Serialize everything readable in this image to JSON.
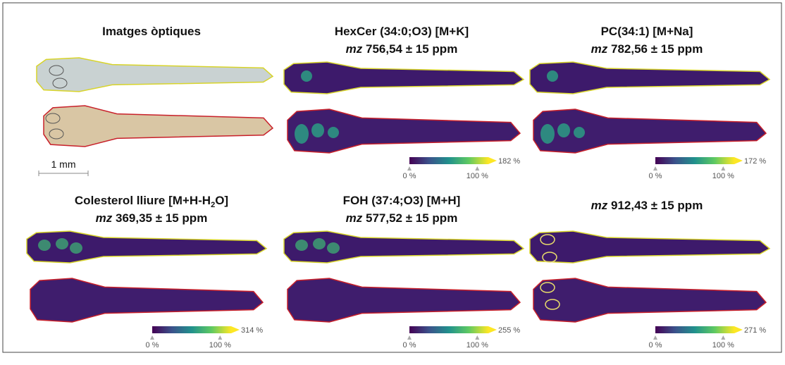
{
  "figure": {
    "optical": {
      "title": "Imatges òptiques",
      "scale_bar": "1 mm"
    },
    "panels": [
      {
        "title": [
          "HexCer (34:0;O3) [M+K]"
        ],
        "mz": [
          "mz",
          " 756,54 ± 15 ppm"
        ],
        "colorbar": {
          "min": "0 %",
          "mid": "100 %",
          "max": "182 %"
        }
      },
      {
        "title": [
          "PC(34:1) [M+Na]"
        ],
        "mz": [
          "mz",
          " 782,56 ± 15 ppm"
        ],
        "colorbar": {
          "min": "0 %",
          "mid": "100 %",
          "max": "172 %"
        }
      },
      {
        "title": [
          "Colesterol lliure [M+H-H",
          "2",
          "O]"
        ],
        "mz": [
          "mz",
          " 369,35 ± 15 ppm"
        ],
        "colorbar": {
          "min": "0 %",
          "mid": "100 %",
          "max": "314 %"
        }
      },
      {
        "title": [
          "FOH (37:4;O3) [M+H]"
        ],
        "mz": [
          "mz",
          " 577,52 ± 15 ppm"
        ],
        "colorbar": {
          "min": "0 %",
          "mid": "100 %",
          "max": "255 %"
        }
      },
      {
        "mz": [
          "mz",
          " 912,43 ± 15 ppm"
        ],
        "colorbar": {
          "min": "0 %",
          "mid": "100 %",
          "max": "271 %"
        }
      }
    ]
  }
}
